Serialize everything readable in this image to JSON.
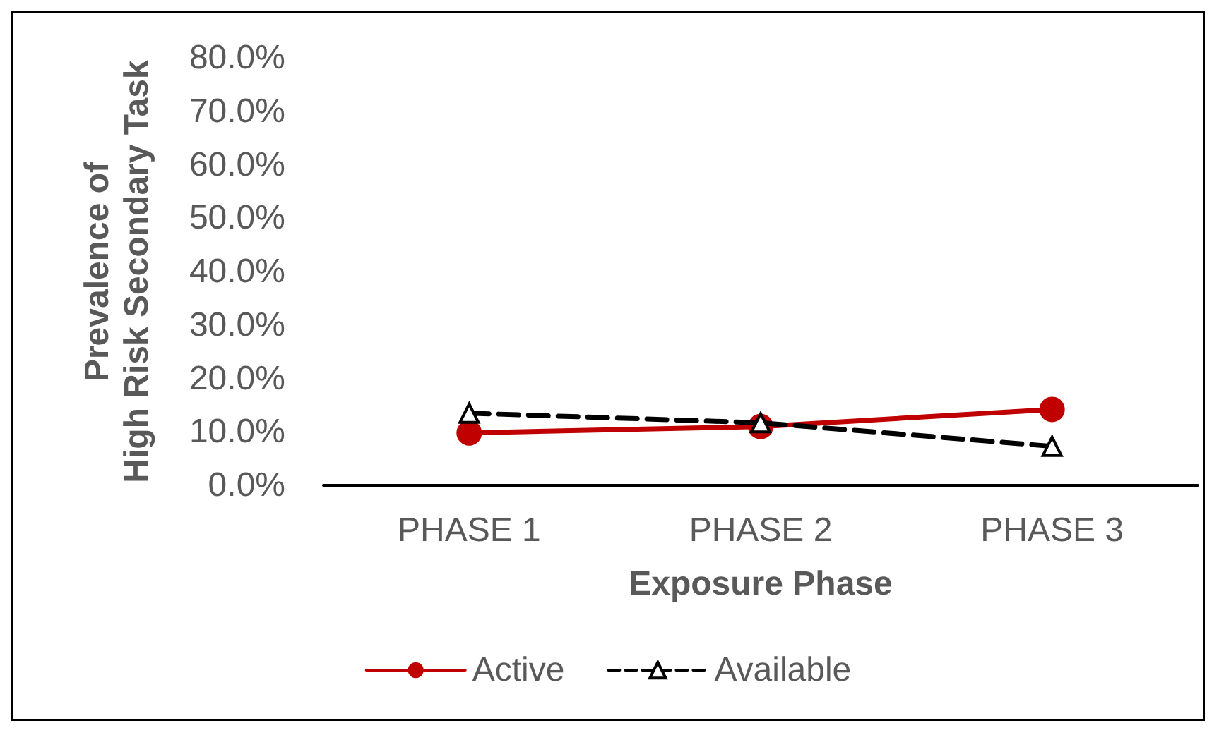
{
  "chart_data": {
    "type": "line",
    "xlabel": "Exposure Phase",
    "ylabel": "Prevalence of\nHigh Risk Secondary Task",
    "categories": [
      "PHASE 1",
      "PHASE 2",
      "PHASE 3"
    ],
    "series": [
      {
        "name": "Active",
        "color": "#c00000",
        "values": [
          9.8,
          11.0,
          14.2
        ],
        "marker": "circle",
        "line_style": "solid"
      },
      {
        "name": "Available",
        "color": "#000000",
        "values": [
          13.5,
          11.7,
          7.3
        ],
        "marker": "triangle",
        "line_style": "dashed"
      }
    ],
    "ylim": [
      0,
      80
    ],
    "yticks": [
      {
        "value": 0,
        "label": "0.0%"
      },
      {
        "value": 10,
        "label": "10.0%"
      },
      {
        "value": 20,
        "label": "20.0%"
      },
      {
        "value": 30,
        "label": "30.0%"
      },
      {
        "value": 40,
        "label": "40.0%"
      },
      {
        "value": 50,
        "label": "50.0%"
      },
      {
        "value": 60,
        "label": "60.0%"
      },
      {
        "value": 70,
        "label": "70.0%"
      },
      {
        "value": 80,
        "label": "80.0%"
      }
    ],
    "grid": false,
    "legend": "bottom"
  }
}
